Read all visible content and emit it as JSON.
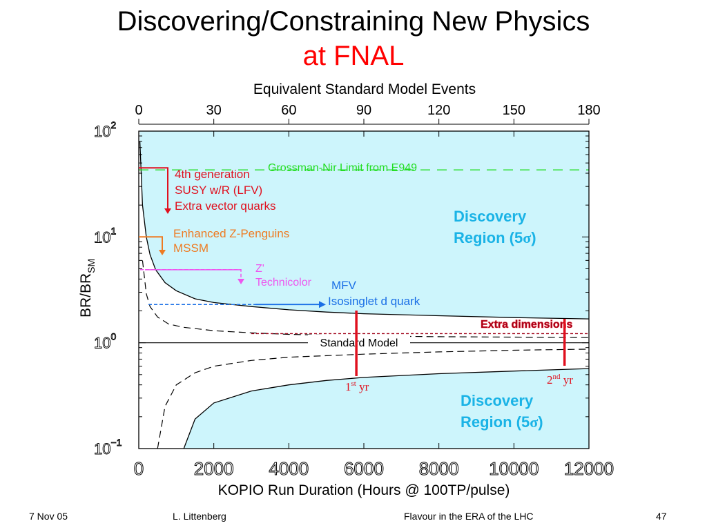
{
  "slide": {
    "title_line1": "Discovering/Constraining New Physics",
    "title_line2": "at FNAL"
  },
  "footer": {
    "date": "7 Nov 05",
    "author": "L. Littenberg",
    "event": "Flavour in the ERA of the LHC",
    "page": "47"
  },
  "colors": {
    "region_fill": "#cdf5fc",
    "region_text": "#1ab3e6",
    "red": "#e0101e",
    "orange": "#ee7b22",
    "magenta": "#ee55ee",
    "blue": "#1a6fe6",
    "green": "#22dd22",
    "dark_red": "#a00018"
  },
  "chart_data": {
    "type": "line",
    "top_axis": {
      "label": "Equivalent Standard Model Events",
      "ticks": [
        0,
        30,
        60,
        90,
        120,
        150,
        180
      ]
    },
    "bottom_axis": {
      "label": "KOPIO Run Duration (Hours @ 100TP/pulse)",
      "ticks": [
        0,
        2000,
        4000,
        6000,
        8000,
        10000,
        12000
      ],
      "range": [
        0,
        12000
      ]
    },
    "y_axis": {
      "label_main": "BR/BR",
      "label_sub": "SM",
      "scale": "log",
      "range": [
        0.1,
        100
      ],
      "ticks": [
        {
          "base": "10",
          "exp": "2",
          "value": 100
        },
        {
          "base": "10",
          "exp": "1",
          "value": 10
        },
        {
          "base": "10",
          "exp": "0",
          "value": 1
        },
        {
          "base": "10",
          "exp": "−1",
          "value": 0.1
        }
      ]
    },
    "series": [
      {
        "kind": "5-sigma discovery boundary (upper)",
        "x": [
          30,
          100,
          200,
          300,
          450,
          700,
          1000,
          1500,
          2000,
          3000,
          4000,
          5000,
          6000,
          8000,
          10000,
          12000
        ],
        "y": [
          80,
          20,
          10,
          6.8,
          4.9,
          3.7,
          3.1,
          2.6,
          2.4,
          2.2,
          2.05,
          1.95,
          1.88,
          1.8,
          1.73,
          1.68
        ]
      },
      {
        "kind": "5-sigma discovery boundary (lower)",
        "x": [
          1200,
          1500,
          2000,
          3000,
          4000,
          5000,
          6000,
          8000,
          10000,
          12000
        ],
        "y": [
          0.1,
          0.19,
          0.27,
          0.35,
          0.4,
          0.44,
          0.47,
          0.51,
          0.54,
          0.57
        ]
      },
      {
        "kind": "dashed band (upper)",
        "x": [
          100,
          200,
          300,
          500,
          800,
          1200,
          2000,
          3000,
          4000,
          6000,
          8000,
          10000,
          12000
        ],
        "y": [
          6,
          2.9,
          2.2,
          1.75,
          1.5,
          1.4,
          1.3,
          1.24,
          1.2,
          1.16,
          1.14,
          1.13,
          1.12
        ]
      },
      {
        "kind": "dashed band (lower)",
        "x": [
          500,
          700,
          1000,
          1500,
          2000,
          3000,
          4000,
          6000,
          8000,
          10000,
          12000
        ],
        "y": [
          0.1,
          0.25,
          0.4,
          0.52,
          0.6,
          0.68,
          0.73,
          0.78,
          0.82,
          0.85,
          0.87
        ]
      }
    ],
    "reference_lines": [
      {
        "label": "Grossman-Nir Limit from E949",
        "y": 43,
        "style": "dashed",
        "color": "#22dd22"
      },
      {
        "label": "Standard Model",
        "y": 1,
        "style": "solid",
        "color": "#000000"
      },
      {
        "label": "Extra dimensions",
        "y": 1.22,
        "style": "dashed",
        "color": "#a00018"
      }
    ],
    "models": [
      {
        "lines": [
          "4th generation",
          "SUSY w/R (LFV)",
          "Extra vector quarks"
        ],
        "y": 45,
        "color": "#e0101e"
      },
      {
        "lines": [
          "Enhanced Z-Penguins",
          "MSSM"
        ],
        "y": 10,
        "color": "#ee7b22"
      },
      {
        "lines": [
          "Z'",
          "Technicolor"
        ],
        "y": 4.9,
        "color": "#ee55ee"
      },
      {
        "lines": [
          "MFV",
          "Isosinglet d quark"
        ],
        "y": 2.3,
        "color": "#1a6fe6"
      }
    ],
    "markers": [
      {
        "label_main": "1",
        "label_sup": "st",
        "label_tail": " yr",
        "x": 5800
      },
      {
        "label_main": "2",
        "label_sup": "nd",
        "label_tail": " yr",
        "x": 11350
      }
    ],
    "regions": [
      {
        "line1": "Discovery",
        "line2": "Region (5",
        "sigma": "σ",
        "close": ")"
      },
      {
        "line1": "Discovery",
        "line2": "Region (5",
        "sigma": "σ",
        "close": ")"
      }
    ]
  }
}
